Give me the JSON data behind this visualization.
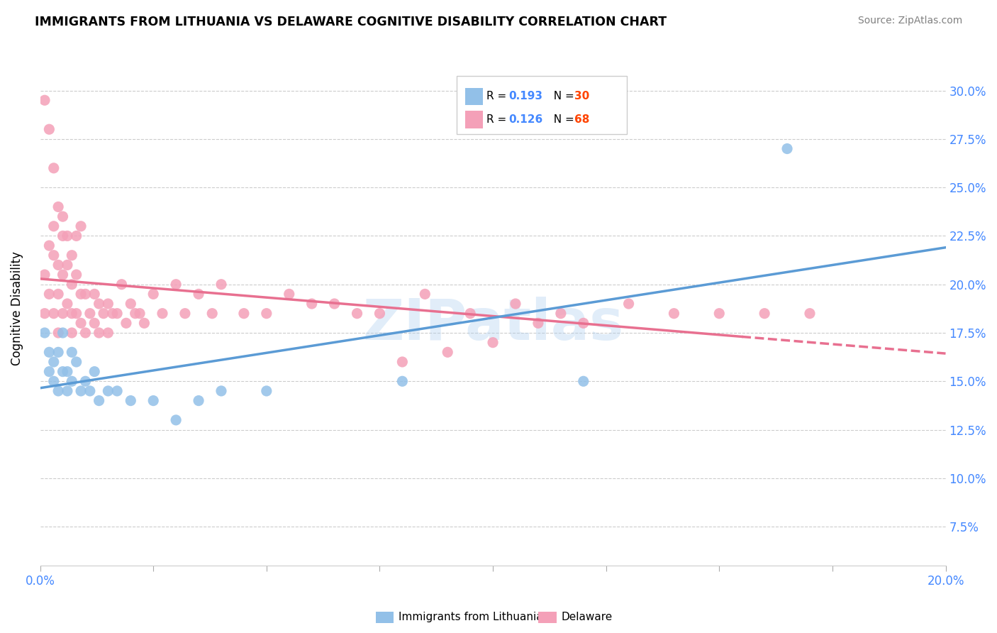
{
  "title": "IMMIGRANTS FROM LITHUANIA VS DELAWARE COGNITIVE DISABILITY CORRELATION CHART",
  "source": "Source: ZipAtlas.com",
  "ylabel": "Cognitive Disability",
  "xlim": [
    0.0,
    0.2
  ],
  "ylim": [
    0.055,
    0.32
  ],
  "xticks": [
    0.0,
    0.025,
    0.05,
    0.075,
    0.1,
    0.125,
    0.15,
    0.175,
    0.2
  ],
  "yticks": [
    0.075,
    0.1,
    0.125,
    0.15,
    0.175,
    0.2,
    0.225,
    0.25,
    0.275,
    0.3
  ],
  "ytick_labels_right": [
    "7.5%",
    "10.0%",
    "12.5%",
    "15.0%",
    "17.5%",
    "20.0%",
    "22.5%",
    "25.0%",
    "27.5%",
    "30.0%"
  ],
  "series1_color": "#92C0E8",
  "series2_color": "#F4A0B8",
  "series1_label": "Immigrants from Lithuania",
  "series2_label": "Delaware",
  "series1_R": 0.193,
  "series1_N": 30,
  "series2_R": 0.126,
  "series2_N": 68,
  "legend_R_color": "#4488FF",
  "legend_N_color": "#FF4400",
  "watermark": "ZIPatlas",
  "series1_x": [
    0.001,
    0.002,
    0.002,
    0.003,
    0.003,
    0.004,
    0.004,
    0.005,
    0.005,
    0.006,
    0.006,
    0.007,
    0.007,
    0.008,
    0.009,
    0.01,
    0.011,
    0.012,
    0.013,
    0.015,
    0.017,
    0.02,
    0.025,
    0.03,
    0.035,
    0.04,
    0.05,
    0.08,
    0.12,
    0.165
  ],
  "series1_y": [
    0.175,
    0.155,
    0.165,
    0.16,
    0.15,
    0.165,
    0.145,
    0.175,
    0.155,
    0.155,
    0.145,
    0.165,
    0.15,
    0.16,
    0.145,
    0.15,
    0.145,
    0.155,
    0.14,
    0.145,
    0.145,
    0.14,
    0.14,
    0.13,
    0.14,
    0.145,
    0.145,
    0.15,
    0.15,
    0.27
  ],
  "series2_x": [
    0.001,
    0.001,
    0.002,
    0.002,
    0.003,
    0.003,
    0.003,
    0.004,
    0.004,
    0.004,
    0.005,
    0.005,
    0.005,
    0.006,
    0.006,
    0.007,
    0.007,
    0.007,
    0.008,
    0.008,
    0.009,
    0.009,
    0.01,
    0.01,
    0.011,
    0.012,
    0.012,
    0.013,
    0.013,
    0.014,
    0.015,
    0.015,
    0.016,
    0.017,
    0.018,
    0.019,
    0.02,
    0.021,
    0.022,
    0.023,
    0.025,
    0.027,
    0.03,
    0.032,
    0.035,
    0.038,
    0.04,
    0.045,
    0.05,
    0.055,
    0.06,
    0.065,
    0.07,
    0.075,
    0.08,
    0.085,
    0.09,
    0.095,
    0.1,
    0.105,
    0.11,
    0.115,
    0.12,
    0.13,
    0.14,
    0.15,
    0.16,
    0.17
  ],
  "series2_y": [
    0.205,
    0.185,
    0.22,
    0.195,
    0.23,
    0.215,
    0.185,
    0.21,
    0.195,
    0.175,
    0.225,
    0.205,
    0.185,
    0.21,
    0.19,
    0.2,
    0.185,
    0.175,
    0.205,
    0.185,
    0.195,
    0.18,
    0.195,
    0.175,
    0.185,
    0.195,
    0.18,
    0.19,
    0.175,
    0.185,
    0.19,
    0.175,
    0.185,
    0.185,
    0.2,
    0.18,
    0.19,
    0.185,
    0.185,
    0.18,
    0.195,
    0.185,
    0.2,
    0.185,
    0.195,
    0.185,
    0.2,
    0.185,
    0.185,
    0.195,
    0.19,
    0.19,
    0.185,
    0.185,
    0.16,
    0.195,
    0.165,
    0.185,
    0.17,
    0.19,
    0.18,
    0.185,
    0.18,
    0.19,
    0.185,
    0.185,
    0.185,
    0.185
  ],
  "series2_x_extra": [
    0.001,
    0.002,
    0.003,
    0.004,
    0.005,
    0.006,
    0.007,
    0.008,
    0.009
  ],
  "series2_y_extra": [
    0.295,
    0.28,
    0.26,
    0.24,
    0.235,
    0.225,
    0.215,
    0.225,
    0.23
  ]
}
